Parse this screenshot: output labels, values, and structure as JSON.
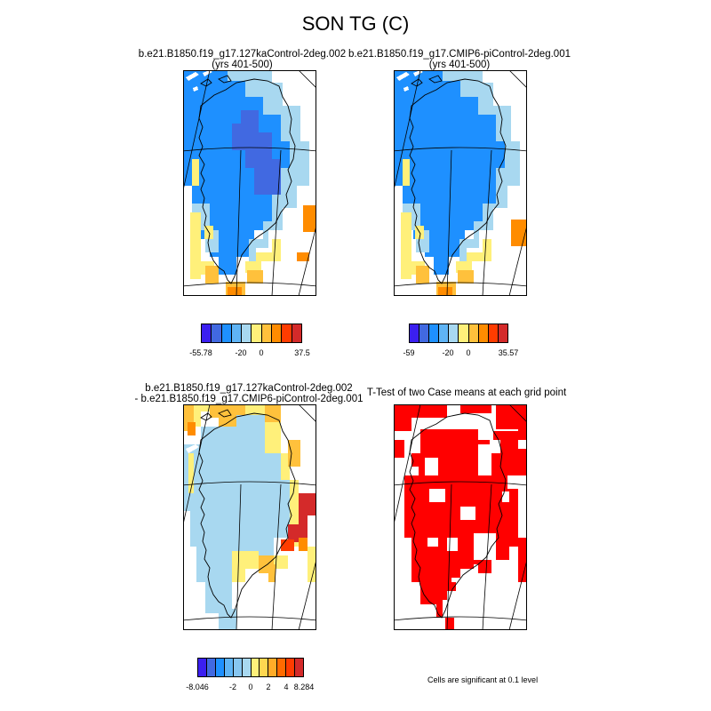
{
  "title": "SON TG (C)",
  "panels": [
    {
      "title_line1": "b.e21.B1850.f19_g17.127kaControl-2deg.002",
      "title_line2": "(yrs 401-500)"
    },
    {
      "title_line1": "b.e21.B1850.f19_g17.CMIP6-piControl-2deg.001",
      "title_line2": "(yrs 401-500)"
    },
    {
      "title_line1": "b.e21.B1850.f19_g17.127kaControl-2deg.002",
      "title_line2": "- b.e21.B1850.f19_g17.CMIP6-piControl-2deg.001"
    },
    {
      "title_line1": "T-Test of two Case means at each grid point",
      "title_line2": ""
    }
  ],
  "colorbars": [
    {
      "colors": [
        "#3b1ff0",
        "#4169e1",
        "#1e90ff",
        "#5fb4f5",
        "#a8d8f0",
        "#fff07a",
        "#ffc13c",
        "#ff8c00",
        "#ff3c00",
        "#d42a2a"
      ],
      "labels": [
        "-55.78",
        "-20",
        "0",
        "37.5"
      ]
    },
    {
      "colors": [
        "#3b1ff0",
        "#4169e1",
        "#1e90ff",
        "#5fb4f5",
        "#a8d8f0",
        "#fff07a",
        "#ffc13c",
        "#ff8c00",
        "#ff3c00",
        "#d42a2a"
      ],
      "labels": [
        "-59",
        "-20",
        "0",
        "35.57"
      ]
    },
    {
      "colors": [
        "#3b1ff0",
        "#4169e1",
        "#1e90ff",
        "#5fb4f5",
        "#87c6f0",
        "#a8d8f0",
        "#fff07a",
        "#ffd750",
        "#ffab28",
        "#ff6a00",
        "#ff3c00",
        "#d42a2a"
      ],
      "labels": [
        "-8.046",
        "-2",
        "0",
        "2",
        "4",
        "8.284"
      ]
    }
  ],
  "significance_note": "Cells are significant at 0.1 level",
  "colors": {
    "cold_deep": "#4169e1",
    "cold": "#1e90ff",
    "cool": "#a8d8f0",
    "warm": "#fff07a",
    "hot": "#ff8c00",
    "significant": "#ff0000"
  }
}
